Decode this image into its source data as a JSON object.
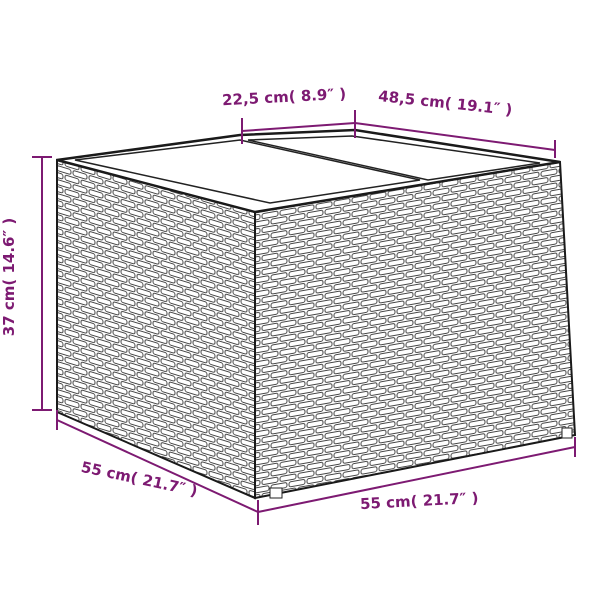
{
  "dimensions": {
    "top_depth": "22,5 cm( 8.9″ )",
    "top_width": "48,5 cm( 19.1″ )",
    "height": "37 cm( 14.6″ )",
    "depth": "55 cm( 21.7″ )",
    "width": "55 cm( 21.7″ )"
  },
  "colors": {
    "dimension": "#7d1a72",
    "outline": "#1a1a1a",
    "weave": "#555555"
  }
}
